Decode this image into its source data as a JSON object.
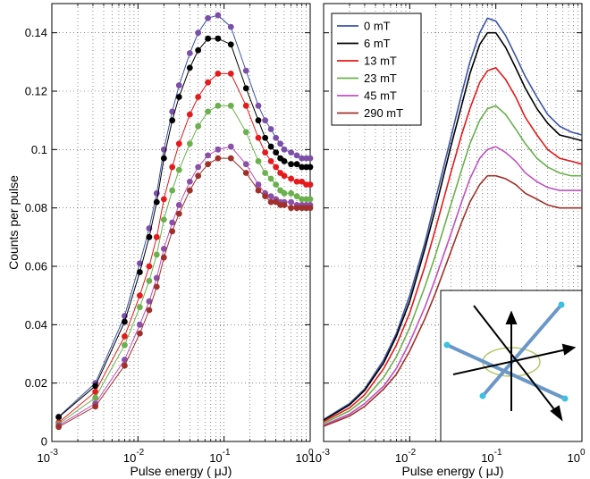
{
  "chart_data": [
    {
      "type": "line",
      "markers": true,
      "ylabel": "Counts per pulse",
      "xlabel": "Pulse energy ( μJ)",
      "xscale": "log",
      "grid": true,
      "xlim": [
        0.001,
        1
      ],
      "xticks": [
        {
          "value": 0.001,
          "label": "10",
          "exponent": "-3"
        },
        {
          "value": 0.01,
          "label": "10",
          "exponent": "-2"
        },
        {
          "value": 0.1,
          "label": "10",
          "exponent": "-1"
        },
        {
          "value": 1,
          "label": "10",
          "exponent": "0"
        }
      ],
      "ylim": [
        0,
        0.15
      ],
      "yticks": [
        0,
        0.02,
        0.04,
        0.06,
        0.08,
        0.1,
        0.12,
        0.14
      ],
      "x": [
        0.0012,
        0.0032,
        0.007,
        0.0105,
        0.0135,
        0.0165,
        0.02,
        0.025,
        0.03,
        0.04,
        0.05,
        0.065,
        0.085,
        0.12,
        0.18,
        0.25,
        0.3,
        0.35,
        0.4,
        0.45,
        0.5,
        0.6,
        0.7,
        0.8,
        0.9,
        1.0
      ],
      "series": [
        {
          "color": "#3a53a4",
          "marker_color": "#7b4fa8",
          "values": [
            0.0085,
            0.02,
            0.043,
            0.061,
            0.073,
            0.085,
            0.1,
            0.113,
            0.122,
            0.133,
            0.14,
            0.145,
            0.146,
            0.142,
            0.127,
            0.115,
            0.11,
            0.107,
            0.104,
            0.102,
            0.1,
            0.099,
            0.098,
            0.097,
            0.097,
            0.097
          ]
        },
        {
          "color": "#000000",
          "marker_color": "#000000",
          "values": [
            0.0083,
            0.019,
            0.041,
            0.058,
            0.07,
            0.082,
            0.097,
            0.11,
            0.118,
            0.128,
            0.134,
            0.138,
            0.138,
            0.136,
            0.121,
            0.11,
            0.104,
            0.101,
            0.099,
            0.097,
            0.096,
            0.095,
            0.095,
            0.094,
            0.094,
            0.094
          ]
        },
        {
          "color": "#e41a1c",
          "marker_color": "#e41a1c",
          "values": [
            0.0065,
            0.017,
            0.036,
            0.05,
            0.06,
            0.07,
            0.083,
            0.094,
            0.102,
            0.112,
            0.118,
            0.123,
            0.126,
            0.126,
            0.115,
            0.104,
            0.099,
            0.096,
            0.094,
            0.092,
            0.091,
            0.09,
            0.089,
            0.089,
            0.088,
            0.088
          ]
        },
        {
          "color": "#6ab04c",
          "marker_color": "#6ab04c",
          "values": [
            0.006,
            0.015,
            0.033,
            0.046,
            0.055,
            0.064,
            0.076,
            0.086,
            0.093,
            0.102,
            0.108,
            0.113,
            0.115,
            0.115,
            0.106,
            0.096,
            0.092,
            0.09,
            0.088,
            0.086,
            0.085,
            0.085,
            0.084,
            0.083,
            0.083,
            0.083
          ]
        },
        {
          "color": "#c050c0",
          "marker_color": "#8a4fa8",
          "values": [
            0.0055,
            0.013,
            0.028,
            0.04,
            0.048,
            0.056,
            0.066,
            0.075,
            0.081,
            0.089,
            0.094,
            0.098,
            0.1,
            0.101,
            0.095,
            0.088,
            0.085,
            0.084,
            0.083,
            0.082,
            0.082,
            0.082,
            0.081,
            0.081,
            0.081,
            0.081
          ]
        },
        {
          "color": "#a0302a",
          "marker_color": "#a0302a",
          "values": [
            0.005,
            0.012,
            0.026,
            0.037,
            0.045,
            0.053,
            0.063,
            0.072,
            0.078,
            0.086,
            0.091,
            0.095,
            0.097,
            0.097,
            0.092,
            0.086,
            0.084,
            0.082,
            0.082,
            0.081,
            0.081,
            0.08,
            0.08,
            0.08,
            0.08,
            0.08
          ]
        }
      ]
    },
    {
      "type": "line",
      "markers": false,
      "xlabel": "Pulse energy ( μJ)",
      "xscale": "log",
      "grid": true,
      "ytick_labels": false,
      "legend": "upper left",
      "xlim": [
        0.001,
        1
      ],
      "xticks": [
        {
          "value": 0.001,
          "label": "10",
          "exponent": "-3"
        },
        {
          "value": 0.01,
          "label": "10",
          "exponent": "-2"
        },
        {
          "value": 0.1,
          "label": "10",
          "exponent": "-1"
        },
        {
          "value": 1,
          "label": "10",
          "exponent": "0"
        }
      ],
      "ylim": [
        0,
        0.15
      ],
      "yticks": [
        0,
        0.02,
        0.04,
        0.06,
        0.08,
        0.1,
        0.12,
        0.14
      ],
      "x": [
        0.001,
        0.002,
        0.003,
        0.005,
        0.007,
        0.01,
        0.015,
        0.02,
        0.03,
        0.04,
        0.05,
        0.065,
        0.08,
        0.1,
        0.13,
        0.17,
        0.22,
        0.3,
        0.4,
        0.55,
        0.75,
        1.0
      ],
      "series": [
        {
          "name": "0 mT",
          "color": "#3a53a4",
          "values": [
            0.0075,
            0.013,
            0.018,
            0.028,
            0.037,
            0.05,
            0.068,
            0.083,
            0.104,
            0.119,
            0.13,
            0.14,
            0.145,
            0.144,
            0.139,
            0.132,
            0.125,
            0.118,
            0.112,
            0.108,
            0.106,
            0.105
          ]
        },
        {
          "name": "6 mT",
          "color": "#000000",
          "values": [
            0.0073,
            0.0125,
            0.0175,
            0.027,
            0.036,
            0.048,
            0.066,
            0.08,
            0.101,
            0.115,
            0.126,
            0.136,
            0.14,
            0.14,
            0.135,
            0.128,
            0.121,
            0.114,
            0.109,
            0.105,
            0.104,
            0.103
          ]
        },
        {
          "name": "13 mT",
          "color": "#e41a1c",
          "values": [
            0.0068,
            0.0115,
            0.016,
            0.025,
            0.033,
            0.044,
            0.06,
            0.073,
            0.092,
            0.105,
            0.114,
            0.123,
            0.127,
            0.128,
            0.124,
            0.118,
            0.111,
            0.105,
            0.1,
            0.097,
            0.096,
            0.095
          ]
        },
        {
          "name": "23 mT",
          "color": "#6ab04c",
          "values": [
            0.0062,
            0.0105,
            0.0145,
            0.022,
            0.029,
            0.039,
            0.053,
            0.064,
            0.081,
            0.093,
            0.102,
            0.11,
            0.114,
            0.115,
            0.112,
            0.107,
            0.102,
            0.097,
            0.094,
            0.092,
            0.091,
            0.091
          ]
        },
        {
          "name": "45 mT",
          "color": "#c050c0",
          "values": [
            0.0056,
            0.0094,
            0.013,
            0.019,
            0.025,
            0.034,
            0.046,
            0.056,
            0.071,
            0.082,
            0.09,
            0.097,
            0.1,
            0.101,
            0.099,
            0.096,
            0.092,
            0.089,
            0.087,
            0.086,
            0.086,
            0.086
          ]
        },
        {
          "name": "290 mT",
          "color": "#a0302a",
          "values": [
            0.0052,
            0.0087,
            0.012,
            0.018,
            0.023,
            0.031,
            0.042,
            0.051,
            0.065,
            0.075,
            0.082,
            0.088,
            0.091,
            0.091,
            0.09,
            0.088,
            0.085,
            0.083,
            0.081,
            0.08,
            0.08,
            0.08
          ]
        }
      ]
    }
  ]
}
